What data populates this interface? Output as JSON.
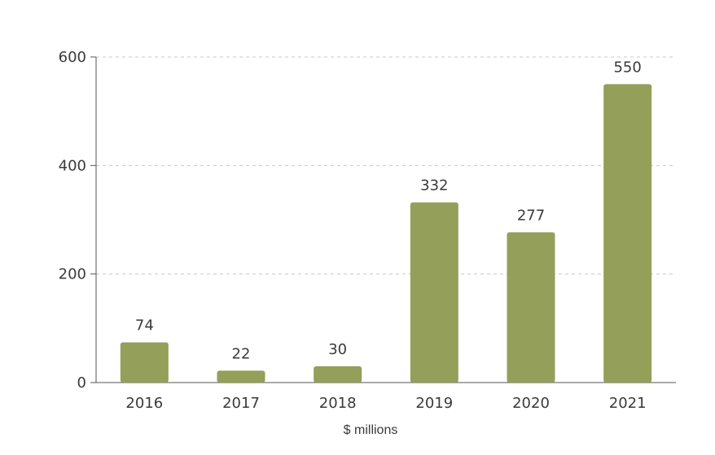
{
  "chart_data": {
    "type": "bar",
    "categories": [
      "2016",
      "2017",
      "2018",
      "2019",
      "2020",
      "2021"
    ],
    "values": [
      74,
      22,
      30,
      332,
      277,
      550
    ],
    "data_labels": [
      "74",
      "22",
      "30",
      "332",
      "277",
      "550"
    ],
    "xlabel": "$ millions",
    "ylabel": "",
    "ylim": [
      0,
      600
    ],
    "yticks": [
      0,
      200,
      400,
      600
    ],
    "ytick_labels": [
      "0",
      "200",
      "400",
      "600"
    ],
    "grid": true,
    "colors": {
      "bar": "#949f59",
      "grid": "#c8c8c8",
      "axis": "#555555",
      "text": "#3a3a3a"
    }
  }
}
